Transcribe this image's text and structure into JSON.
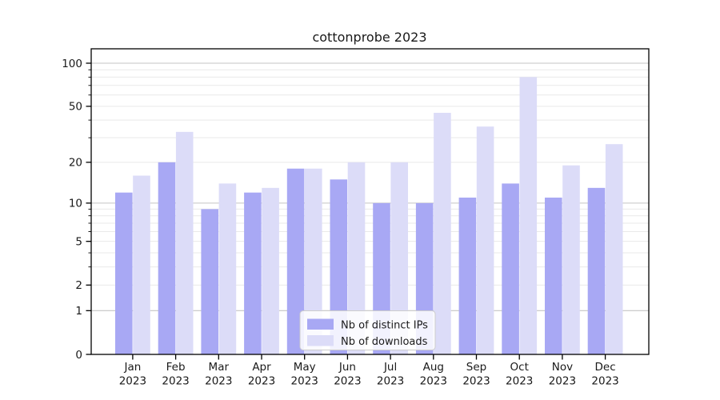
{
  "chart_data": {
    "type": "bar",
    "title": "cottonprobe 2023",
    "categories": [
      {
        "month": "Jan",
        "year": "2023"
      },
      {
        "month": "Feb",
        "year": "2023"
      },
      {
        "month": "Mar",
        "year": "2023"
      },
      {
        "month": "Apr",
        "year": "2023"
      },
      {
        "month": "May",
        "year": "2023"
      },
      {
        "month": "Jun",
        "year": "2023"
      },
      {
        "month": "Jul",
        "year": "2023"
      },
      {
        "month": "Aug",
        "year": "2023"
      },
      {
        "month": "Sep",
        "year": "2023"
      },
      {
        "month": "Oct",
        "year": "2023"
      },
      {
        "month": "Nov",
        "year": "2023"
      },
      {
        "month": "Dec",
        "year": "2023"
      }
    ],
    "series": [
      {
        "name": "Nb of distinct IPs",
        "color": "#a8a8f4",
        "values": [
          12,
          20,
          9,
          12,
          18,
          15,
          10,
          10,
          11,
          14,
          11,
          13
        ]
      },
      {
        "name": "Nb of downloads",
        "color": "#dcdcf8",
        "values": [
          16,
          33,
          14,
          13,
          18,
          20,
          20,
          45,
          36,
          80,
          19,
          27
        ]
      }
    ],
    "yscale": "log1p",
    "ylim": [
      0,
      126
    ],
    "yticks": [
      0,
      1,
      2,
      5,
      10,
      20,
      50,
      100
    ],
    "major_gridlines": [
      1,
      10,
      100
    ],
    "minor_gridlines": [
      2,
      3,
      4,
      5,
      6,
      7,
      8,
      9,
      20,
      30,
      40,
      50,
      60,
      70,
      80,
      90
    ],
    "grid": true,
    "legend_position": "bottom-center",
    "colors": {
      "axis": "#000000",
      "text": "#1a1a1a",
      "grid_major": "#c4c4c4",
      "grid_minor": "#e9e9e9",
      "legend_border": "#cccccc",
      "legend_bg": "#ffffff"
    }
  }
}
